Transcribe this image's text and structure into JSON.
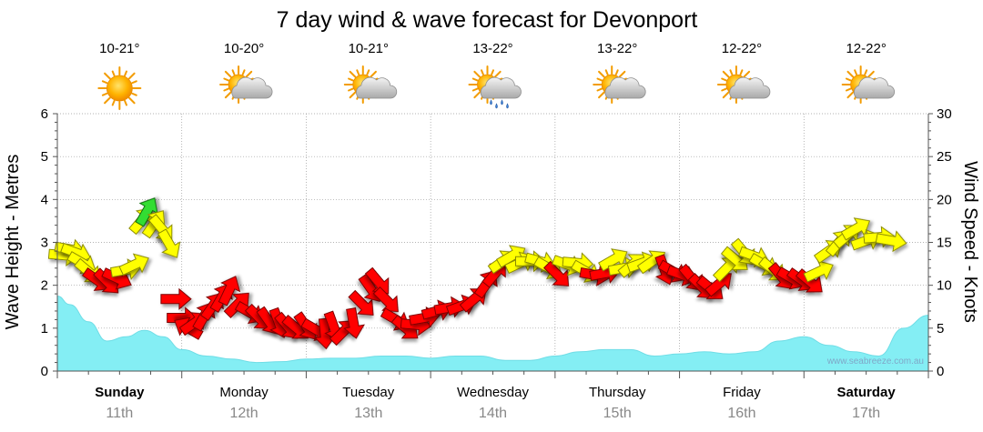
{
  "chart_data": {
    "type": "line",
    "title": "7 day wind & wave forecast for Devonport",
    "ylabel_left": "Wave Height - Metres",
    "ylabel_right": "Wind Speed - Knots",
    "ylim_left": [
      0,
      6
    ],
    "ylim_right": [
      0,
      30
    ],
    "yticks_left": [
      "0",
      "1",
      "2",
      "3",
      "4",
      "5",
      "6"
    ],
    "yticks_right": [
      "0",
      "5",
      "10",
      "15",
      "20",
      "25",
      "30"
    ],
    "grid": true,
    "credit": "www.seabreeze.com.au",
    "days": [
      {
        "day": "Sunday",
        "date": "11th",
        "temp": "10-21°",
        "weather": "sun-icon",
        "bold": true
      },
      {
        "day": "Monday",
        "date": "12th",
        "temp": "10-20°",
        "weather": "partly-cloudy-icon",
        "bold": false
      },
      {
        "day": "Tuesday",
        "date": "13th",
        "temp": "10-21°",
        "weather": "partly-cloudy-icon",
        "bold": false
      },
      {
        "day": "Wednesday",
        "date": "14th",
        "temp": "13-22°",
        "weather": "showers-icon",
        "bold": false
      },
      {
        "day": "Thursday",
        "date": "15th",
        "temp": "13-22°",
        "weather": "partly-cloudy-icon",
        "bold": false
      },
      {
        "day": "Friday",
        "date": "16th",
        "temp": "12-22°",
        "weather": "partly-cloudy-icon",
        "bold": false
      },
      {
        "day": "Saturday",
        "date": "17th",
        "temp": "12-22°",
        "weather": "partly-cloudy-icon",
        "bold": true
      }
    ],
    "wave_height": {
      "x_days": [
        0,
        0.1,
        0.25,
        0.4,
        0.55,
        0.7,
        0.85,
        1.0,
        1.2,
        1.4,
        1.6,
        1.8,
        2.0,
        2.2,
        2.4,
        2.6,
        2.8,
        3.0,
        3.2,
        3.4,
        3.6,
        3.8,
        4.0,
        4.2,
        4.4,
        4.6,
        4.8,
        5.0,
        5.2,
        5.4,
        5.6,
        5.8,
        6.0,
        6.2,
        6.4,
        6.6,
        6.8,
        7.0
      ],
      "values": [
        1.75,
        1.55,
        1.15,
        0.7,
        0.8,
        0.95,
        0.8,
        0.5,
        0.35,
        0.28,
        0.2,
        0.22,
        0.28,
        0.3,
        0.3,
        0.35,
        0.35,
        0.3,
        0.35,
        0.35,
        0.25,
        0.25,
        0.35,
        0.45,
        0.5,
        0.5,
        0.35,
        0.4,
        0.45,
        0.4,
        0.45,
        0.7,
        0.8,
        0.6,
        0.45,
        0.35,
        1.0,
        1.3
      ]
    },
    "wind": [
      {
        "d": 0.05,
        "kt": 13.5,
        "dir": 95,
        "c": "yellow"
      },
      {
        "d": 0.1,
        "kt": 14.2,
        "dir": 100,
        "c": "yellow"
      },
      {
        "d": 0.15,
        "kt": 13.8,
        "dir": 110,
        "c": "yellow"
      },
      {
        "d": 0.2,
        "kt": 12.6,
        "dir": 120,
        "c": "yellow"
      },
      {
        "d": 0.25,
        "kt": 11.6,
        "dir": 130,
        "c": "yellow"
      },
      {
        "d": 0.32,
        "kt": 10.6,
        "dir": 125,
        "c": "red"
      },
      {
        "d": 0.4,
        "kt": 10.4,
        "dir": 135,
        "c": "red"
      },
      {
        "d": 0.48,
        "kt": 10.8,
        "dir": 115,
        "c": "red"
      },
      {
        "d": 0.55,
        "kt": 11.8,
        "dir": 80,
        "c": "yellow"
      },
      {
        "d": 0.62,
        "kt": 12.4,
        "dir": 65,
        "c": "yellow"
      },
      {
        "d": 0.68,
        "kt": 17.6,
        "dir": 40,
        "c": "yellow"
      },
      {
        "d": 0.72,
        "kt": 18.6,
        "dir": 30,
        "c": "green"
      },
      {
        "d": 0.78,
        "kt": 17.2,
        "dir": 35,
        "c": "yellow"
      },
      {
        "d": 0.84,
        "kt": 16.6,
        "dir": 140,
        "c": "yellow"
      },
      {
        "d": 0.9,
        "kt": 14.8,
        "dir": 150,
        "c": "yellow"
      },
      {
        "d": 0.95,
        "kt": 8.4,
        "dir": 90,
        "c": "red"
      },
      {
        "d": 1.0,
        "kt": 6.2,
        "dir": 90,
        "c": "red"
      },
      {
        "d": 1.05,
        "kt": 5.0,
        "dir": 300,
        "c": "red"
      },
      {
        "d": 1.1,
        "kt": 5.6,
        "dir": 55,
        "c": "red"
      },
      {
        "d": 1.18,
        "kt": 6.4,
        "dir": 30,
        "c": "red"
      },
      {
        "d": 1.25,
        "kt": 7.6,
        "dir": 35,
        "c": "red"
      },
      {
        "d": 1.32,
        "kt": 8.6,
        "dir": 30,
        "c": "red"
      },
      {
        "d": 1.38,
        "kt": 9.4,
        "dir": 25,
        "c": "red"
      },
      {
        "d": 1.45,
        "kt": 7.8,
        "dir": 45,
        "c": "red"
      },
      {
        "d": 1.55,
        "kt": 6.8,
        "dir": 120,
        "c": "red"
      },
      {
        "d": 1.62,
        "kt": 6.2,
        "dir": 135,
        "c": "red"
      },
      {
        "d": 1.7,
        "kt": 5.8,
        "dir": 145,
        "c": "red"
      },
      {
        "d": 1.78,
        "kt": 5.6,
        "dir": 160,
        "c": "red"
      },
      {
        "d": 1.85,
        "kt": 5.2,
        "dir": 140,
        "c": "red"
      },
      {
        "d": 1.92,
        "kt": 5.0,
        "dir": 130,
        "c": "red"
      },
      {
        "d": 2.0,
        "kt": 5.2,
        "dir": 145,
        "c": "red"
      },
      {
        "d": 2.08,
        "kt": 4.8,
        "dir": 120,
        "c": "red"
      },
      {
        "d": 2.15,
        "kt": 4.4,
        "dir": 175,
        "c": "red"
      },
      {
        "d": 2.22,
        "kt": 5.2,
        "dir": 160,
        "c": "red"
      },
      {
        "d": 2.3,
        "kt": 4.6,
        "dir": 45,
        "c": "red"
      },
      {
        "d": 2.38,
        "kt": 5.6,
        "dir": 170,
        "c": "red"
      },
      {
        "d": 2.45,
        "kt": 7.8,
        "dir": 135,
        "c": "red"
      },
      {
        "d": 2.52,
        "kt": 9.6,
        "dir": 145,
        "c": "red"
      },
      {
        "d": 2.58,
        "kt": 10.4,
        "dir": 140,
        "c": "red"
      },
      {
        "d": 2.65,
        "kt": 8.2,
        "dir": 135,
        "c": "red"
      },
      {
        "d": 2.72,
        "kt": 6.0,
        "dir": 120,
        "c": "red"
      },
      {
        "d": 2.8,
        "kt": 5.0,
        "dir": 130,
        "c": "red"
      },
      {
        "d": 2.88,
        "kt": 5.4,
        "dir": 95,
        "c": "red"
      },
      {
        "d": 2.95,
        "kt": 6.2,
        "dir": 80,
        "c": "red"
      },
      {
        "d": 3.05,
        "kt": 7.0,
        "dir": 75,
        "c": "red"
      },
      {
        "d": 3.15,
        "kt": 7.4,
        "dir": 80,
        "c": "red"
      },
      {
        "d": 3.25,
        "kt": 7.6,
        "dir": 70,
        "c": "red"
      },
      {
        "d": 3.35,
        "kt": 8.4,
        "dir": 50,
        "c": "red"
      },
      {
        "d": 3.45,
        "kt": 10.2,
        "dir": 35,
        "c": "red"
      },
      {
        "d": 3.52,
        "kt": 11.4,
        "dir": 40,
        "c": "red"
      },
      {
        "d": 3.58,
        "kt": 12.8,
        "dir": 55,
        "c": "yellow"
      },
      {
        "d": 3.65,
        "kt": 13.4,
        "dir": 60,
        "c": "yellow"
      },
      {
        "d": 3.72,
        "kt": 12.6,
        "dir": 65,
        "c": "yellow"
      },
      {
        "d": 3.8,
        "kt": 12.8,
        "dir": 90,
        "c": "yellow"
      },
      {
        "d": 3.88,
        "kt": 12.8,
        "dir": 105,
        "c": "yellow"
      },
      {
        "d": 3.95,
        "kt": 12.0,
        "dir": 120,
        "c": "yellow"
      },
      {
        "d": 4.02,
        "kt": 11.2,
        "dir": 135,
        "c": "red"
      },
      {
        "d": 4.1,
        "kt": 12.4,
        "dir": 110,
        "c": "yellow"
      },
      {
        "d": 4.18,
        "kt": 12.6,
        "dir": 95,
        "c": "yellow"
      },
      {
        "d": 4.25,
        "kt": 11.6,
        "dir": 120,
        "c": "yellow"
      },
      {
        "d": 4.32,
        "kt": 11.2,
        "dir": 100,
        "c": "red"
      },
      {
        "d": 4.4,
        "kt": 11.4,
        "dir": 80,
        "c": "red"
      },
      {
        "d": 4.47,
        "kt": 13.0,
        "dir": 60,
        "c": "yellow"
      },
      {
        "d": 4.55,
        "kt": 12.0,
        "dir": 80,
        "c": "yellow"
      },
      {
        "d": 4.62,
        "kt": 12.4,
        "dir": 50,
        "c": "yellow"
      },
      {
        "d": 4.7,
        "kt": 12.6,
        "dir": 70,
        "c": "yellow"
      },
      {
        "d": 4.78,
        "kt": 12.8,
        "dir": 55,
        "c": "yellow"
      },
      {
        "d": 4.88,
        "kt": 11.8,
        "dir": 160,
        "c": "red"
      },
      {
        "d": 4.95,
        "kt": 11.6,
        "dir": 120,
        "c": "red"
      },
      {
        "d": 5.02,
        "kt": 11.2,
        "dir": 110,
        "c": "red"
      },
      {
        "d": 5.1,
        "kt": 10.8,
        "dir": 140,
        "c": "red"
      },
      {
        "d": 5.18,
        "kt": 9.8,
        "dir": 135,
        "c": "red"
      },
      {
        "d": 5.25,
        "kt": 9.6,
        "dir": 130,
        "c": "red"
      },
      {
        "d": 5.32,
        "kt": 10.2,
        "dir": 50,
        "c": "red"
      },
      {
        "d": 5.38,
        "kt": 12.0,
        "dir": 45,
        "c": "yellow"
      },
      {
        "d": 5.45,
        "kt": 13.0,
        "dir": 130,
        "c": "yellow"
      },
      {
        "d": 5.52,
        "kt": 13.8,
        "dir": 140,
        "c": "yellow"
      },
      {
        "d": 5.6,
        "kt": 13.4,
        "dir": 110,
        "c": "yellow"
      },
      {
        "d": 5.68,
        "kt": 12.4,
        "dir": 120,
        "c": "yellow"
      },
      {
        "d": 5.75,
        "kt": 11.8,
        "dir": 130,
        "c": "yellow"
      },
      {
        "d": 5.82,
        "kt": 11.0,
        "dir": 140,
        "c": "red"
      },
      {
        "d": 5.9,
        "kt": 10.8,
        "dir": 120,
        "c": "red"
      },
      {
        "d": 5.98,
        "kt": 10.6,
        "dir": 125,
        "c": "red"
      },
      {
        "d": 6.05,
        "kt": 10.4,
        "dir": 130,
        "c": "red"
      },
      {
        "d": 6.12,
        "kt": 11.6,
        "dir": 65,
        "c": "yellow"
      },
      {
        "d": 6.2,
        "kt": 14.0,
        "dir": 55,
        "c": "yellow"
      },
      {
        "d": 6.28,
        "kt": 15.0,
        "dir": 40,
        "c": "yellow"
      },
      {
        "d": 6.35,
        "kt": 15.8,
        "dir": 50,
        "c": "yellow"
      },
      {
        "d": 6.42,
        "kt": 16.6,
        "dir": 60,
        "c": "yellow"
      },
      {
        "d": 6.5,
        "kt": 15.2,
        "dir": 70,
        "c": "yellow"
      },
      {
        "d": 6.6,
        "kt": 15.6,
        "dir": 85,
        "c": "yellow"
      },
      {
        "d": 6.7,
        "kt": 15.2,
        "dir": 100,
        "c": "yellow"
      }
    ]
  }
}
